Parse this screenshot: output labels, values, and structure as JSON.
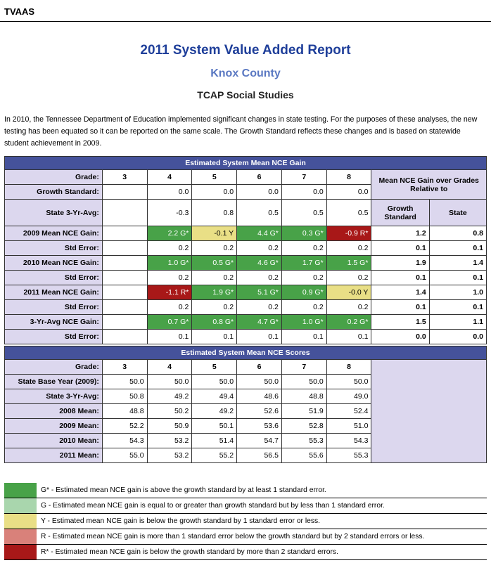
{
  "header": {
    "label": "TVAAS"
  },
  "titles": {
    "main": "2011 System Value Added Report",
    "district": "Knox County",
    "subject": "TCAP Social Studies"
  },
  "intro": "In 2010, the Tennessee Department of Education implemented significant changes in state testing. For the purposes of these analyses, the new testing has been equated so it can be reported on the same scale. The Growth Standard reflects these changes and is based on statewide student achievement in 2009.",
  "gain_table": {
    "section_title": "Estimated System Mean NCE Gain",
    "grade_label": "Grade:",
    "grades": [
      "3",
      "4",
      "5",
      "6",
      "7",
      "8"
    ],
    "side_header": "Mean NCE Gain over Grades Relative to",
    "side_cols": [
      "Growth Standard",
      "State"
    ],
    "rows": [
      {
        "label": "Growth Standard:",
        "values": [
          "",
          "0.0",
          "0.0",
          "0.0",
          "0.0",
          "0.0"
        ],
        "classes": [
          "",
          "",
          "",
          "",
          "",
          ""
        ],
        "side": []
      },
      {
        "label": "State 3-Yr-Avg:",
        "values": [
          "",
          "-0.3",
          "0.8",
          "0.5",
          "0.5",
          "0.5"
        ],
        "classes": [
          "",
          "",
          "",
          "",
          "",
          ""
        ],
        "side": []
      },
      {
        "label": "2009 Mean NCE Gain:",
        "values": [
          "",
          "2.2 G*",
          "-0.1 Y",
          "4.4 G*",
          "0.3 G*",
          "-0.9 R*"
        ],
        "classes": [
          "",
          "gs",
          "y",
          "gs",
          "gs",
          "rs"
        ],
        "side": [
          "1.2",
          "0.8"
        ]
      },
      {
        "label": "Std Error:",
        "values": [
          "",
          "0.2",
          "0.2",
          "0.2",
          "0.2",
          "0.2"
        ],
        "classes": [
          "",
          "",
          "",
          "",
          "",
          ""
        ],
        "side": [
          "0.1",
          "0.1"
        ]
      },
      {
        "label": "2010 Mean NCE Gain:",
        "values": [
          "",
          "1.0 G*",
          "0.5 G*",
          "4.6 G*",
          "1.7 G*",
          "1.5 G*"
        ],
        "classes": [
          "",
          "gs",
          "gs",
          "gs",
          "gs",
          "gs"
        ],
        "side": [
          "1.9",
          "1.4"
        ]
      },
      {
        "label": "Std Error:",
        "values": [
          "",
          "0.2",
          "0.2",
          "0.2",
          "0.2",
          "0.2"
        ],
        "classes": [
          "",
          "",
          "",
          "",
          "",
          ""
        ],
        "side": [
          "0.1",
          "0.1"
        ]
      },
      {
        "label": "2011 Mean NCE Gain:",
        "values": [
          "",
          "-1.1 R*",
          "1.9 G*",
          "5.1 G*",
          "0.9 G*",
          "-0.0 Y"
        ],
        "classes": [
          "",
          "rs",
          "gs",
          "gs",
          "gs",
          "y"
        ],
        "side": [
          "1.4",
          "1.0"
        ]
      },
      {
        "label": "Std Error:",
        "values": [
          "",
          "0.2",
          "0.2",
          "0.2",
          "0.2",
          "0.2"
        ],
        "classes": [
          "",
          "",
          "",
          "",
          "",
          ""
        ],
        "side": [
          "0.1",
          "0.1"
        ]
      },
      {
        "label": "3-Yr-Avg NCE Gain:",
        "values": [
          "",
          "0.7 G*",
          "0.8 G*",
          "4.7 G*",
          "1.0 G*",
          "0.2 G*"
        ],
        "classes": [
          "",
          "gs",
          "gs",
          "gs",
          "gs",
          "gs"
        ],
        "side": [
          "1.5",
          "1.1"
        ]
      },
      {
        "label": "Std Error:",
        "values": [
          "",
          "0.1",
          "0.1",
          "0.1",
          "0.1",
          "0.1"
        ],
        "classes": [
          "",
          "",
          "",
          "",
          "",
          ""
        ],
        "side": [
          "0.0",
          "0.0"
        ]
      }
    ]
  },
  "score_table": {
    "section_title": "Estimated System Mean NCE Scores",
    "grade_label": "Grade:",
    "grades": [
      "3",
      "4",
      "5",
      "6",
      "7",
      "8"
    ],
    "rows": [
      {
        "label": "State Base Year (2009):",
        "values": [
          "50.0",
          "50.0",
          "50.0",
          "50.0",
          "50.0",
          "50.0"
        ]
      },
      {
        "label": "State 3-Yr-Avg:",
        "values": [
          "50.8",
          "49.2",
          "49.4",
          "48.6",
          "48.8",
          "49.0"
        ]
      },
      {
        "label": "2008 Mean:",
        "values": [
          "48.8",
          "50.2",
          "49.2",
          "52.6",
          "51.9",
          "52.4"
        ]
      },
      {
        "label": "2009 Mean:",
        "values": [
          "52.2",
          "50.9",
          "50.1",
          "53.6",
          "52.8",
          "51.0"
        ]
      },
      {
        "label": "2010 Mean:",
        "values": [
          "54.3",
          "53.2",
          "51.4",
          "54.7",
          "55.3",
          "54.3"
        ]
      },
      {
        "label": "2011 Mean:",
        "values": [
          "55.0",
          "53.2",
          "55.2",
          "56.5",
          "55.6",
          "55.3"
        ]
      }
    ]
  },
  "legend": [
    {
      "cls": "gs",
      "color": "#48a248",
      "text": "G* - Estimated mean NCE gain is above the growth standard by at least 1 standard error."
    },
    {
      "cls": "g",
      "color": "#a9d6ad",
      "text": "G - Estimated mean NCE gain is equal to or greater than growth standard but by less than 1 standard error."
    },
    {
      "cls": "y",
      "color": "#e9df86",
      "text": "Y - Estimated mean NCE gain is below the growth standard by 1 standard error or less."
    },
    {
      "cls": "r",
      "color": "#d9817a",
      "text": "R - Estimated mean NCE gain is more than 1 standard error below the growth standard but by 2 standard errors or less."
    },
    {
      "cls": "rs",
      "color": "#a81818",
      "text": "R* - Estimated mean NCE gain is below the growth standard by more than 2 standard errors."
    }
  ]
}
